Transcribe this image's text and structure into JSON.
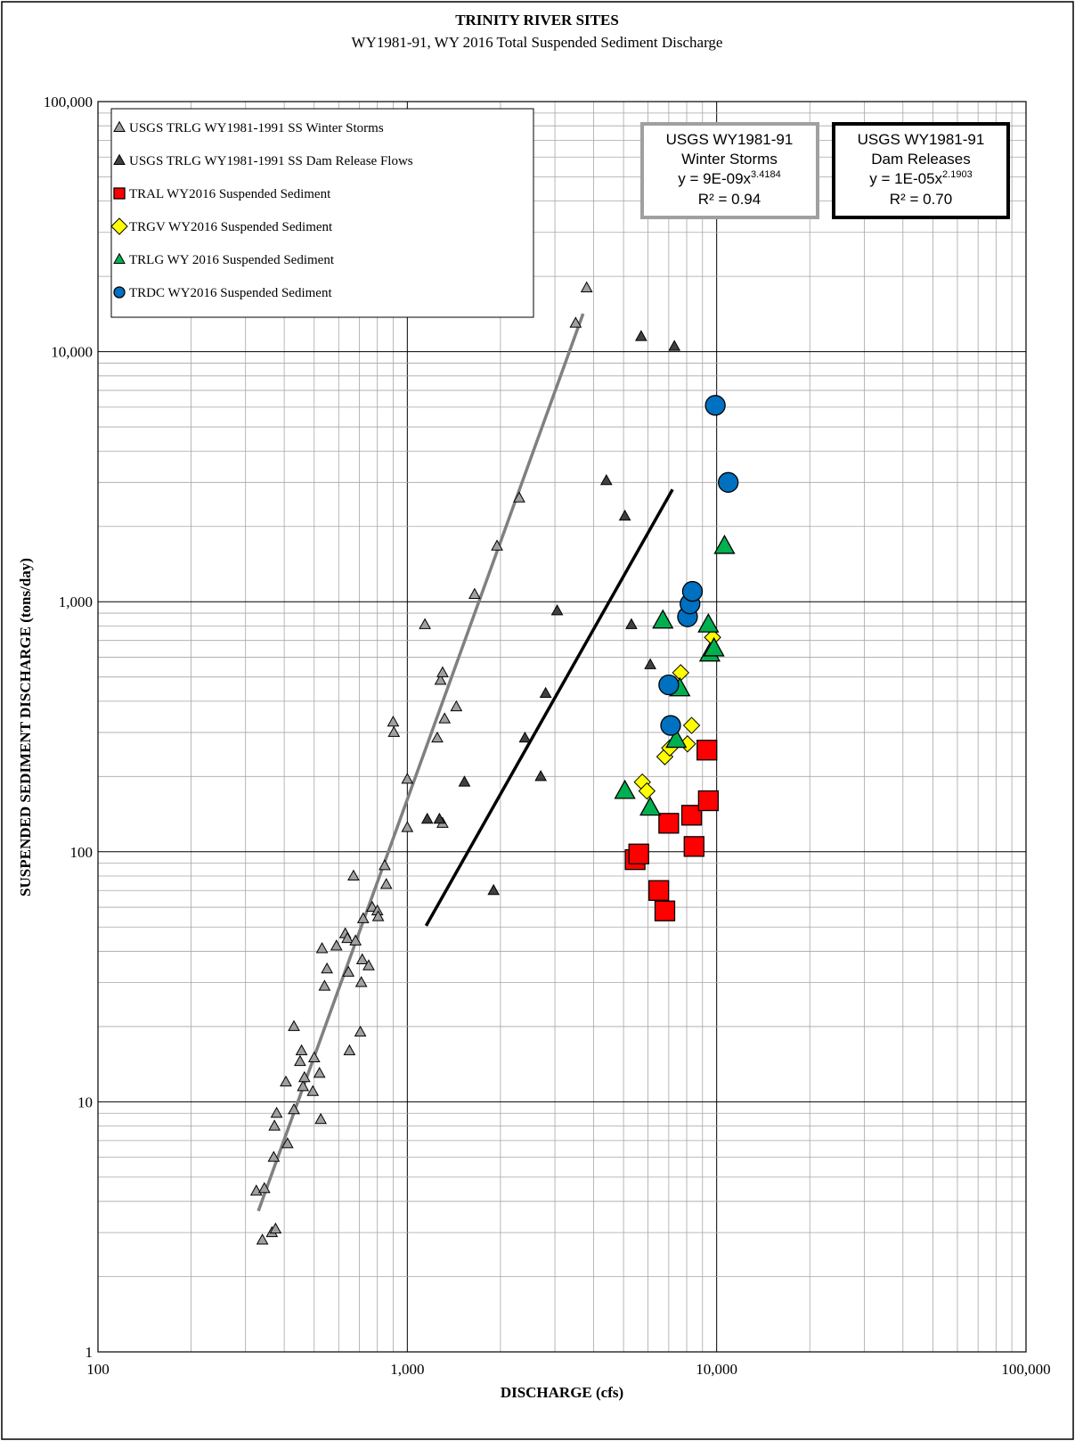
{
  "chart_data": {
    "type": "scatter",
    "title": "TRINITY RIVER SITES",
    "subtitle": "WY1981-91, WY 2016 Total Suspended Sediment Discharge",
    "xlabel": "DISCHARGE  (cfs)",
    "ylabel": "SUSPENDED SEDIMENT DISCHARGE  (tons/day)",
    "x_scale": "log",
    "y_scale": "log",
    "xlim": [
      100,
      100000
    ],
    "ylim": [
      1,
      100000
    ],
    "grid": true,
    "legend_position": "top-left",
    "x_ticks": [
      {
        "value": 100,
        "label": "100"
      },
      {
        "value": 1000,
        "label": "1,000"
      },
      {
        "value": 10000,
        "label": "10,000"
      },
      {
        "value": 100000,
        "label": "100,000"
      }
    ],
    "y_ticks": [
      {
        "value": 1,
        "label": "1"
      },
      {
        "value": 10,
        "label": "10"
      },
      {
        "value": 100,
        "label": "100"
      },
      {
        "value": 1000,
        "label": "1,000"
      },
      {
        "value": 10000,
        "label": "10,000"
      },
      {
        "value": 100000,
        "label": "100,000"
      }
    ],
    "series": [
      {
        "name": "USGS TRLG WY1981-1991 SS Winter Storms",
        "marker": "triangle",
        "color": "#a0a0a0",
        "size": "small",
        "points": [
          [
            325,
            4.4
          ],
          [
            340,
            2.8
          ],
          [
            365,
            3.0
          ],
          [
            375,
            3.1
          ],
          [
            345,
            4.5
          ],
          [
            370,
            6.0
          ],
          [
            372,
            8.0
          ],
          [
            378,
            9.0
          ],
          [
            410,
            6.8
          ],
          [
            405,
            12
          ],
          [
            430,
            9.3
          ],
          [
            430,
            20
          ],
          [
            455,
            16
          ],
          [
            450,
            14.5
          ],
          [
            460,
            11.5
          ],
          [
            465,
            12.5
          ],
          [
            495,
            11
          ],
          [
            500,
            15
          ],
          [
            520,
            13
          ],
          [
            525,
            8.5
          ],
          [
            530,
            41
          ],
          [
            540,
            29
          ],
          [
            550,
            34
          ],
          [
            590,
            42
          ],
          [
            630,
            47
          ],
          [
            640,
            45
          ],
          [
            645,
            33
          ],
          [
            650,
            16
          ],
          [
            670,
            80
          ],
          [
            680,
            44
          ],
          [
            705,
            19
          ],
          [
            710,
            30
          ],
          [
            715,
            37
          ],
          [
            720,
            54
          ],
          [
            750,
            35
          ],
          [
            770,
            60
          ],
          [
            800,
            58
          ],
          [
            805,
            55
          ],
          [
            845,
            88
          ],
          [
            855,
            74
          ],
          [
            900,
            330
          ],
          [
            905,
            300
          ],
          [
            1000,
            195
          ],
          [
            1000,
            125
          ],
          [
            1140,
            810
          ],
          [
            1250,
            285
          ],
          [
            1280,
            485
          ],
          [
            1300,
            520
          ],
          [
            1320,
            340
          ],
          [
            1440,
            380
          ],
          [
            1650,
            1070
          ],
          [
            1950,
            1670
          ],
          [
            2300,
            2600
          ],
          [
            3500,
            13000
          ],
          [
            3800,
            18000
          ],
          [
            1300,
            130
          ]
        ]
      },
      {
        "name": "USGS TRLG WY1981-1991  SS Dam Release Flows",
        "marker": "triangle",
        "color": "#404040",
        "size": "small",
        "points": [
          [
            1160,
            135
          ],
          [
            1270,
            135
          ],
          [
            1530,
            190
          ],
          [
            1900,
            70
          ],
          [
            2400,
            285
          ],
          [
            2700,
            200
          ],
          [
            2800,
            430
          ],
          [
            3050,
            920
          ],
          [
            4400,
            3050
          ],
          [
            5050,
            2200
          ],
          [
            5300,
            810
          ],
          [
            5700,
            11500
          ],
          [
            6100,
            560
          ],
          [
            7300,
            10500
          ]
        ]
      },
      {
        "name": "TRAL WY2016 Suspended Sediment",
        "marker": "square",
        "color": "#ff0000",
        "size": "large",
        "points": [
          [
            5450,
            93
          ],
          [
            5600,
            98
          ],
          [
            6500,
            70
          ],
          [
            6800,
            58
          ],
          [
            7000,
            130
          ],
          [
            8300,
            140
          ],
          [
            8450,
            105
          ],
          [
            9300,
            255
          ],
          [
            9400,
            160
          ]
        ]
      },
      {
        "name": "TRGV WY2016 Suspended Sediment",
        "marker": "diamond",
        "color": "#ffff00",
        "size": "small",
        "points": [
          [
            5750,
            190
          ],
          [
            5950,
            175
          ],
          [
            6800,
            240
          ],
          [
            7050,
            260
          ],
          [
            7650,
            520
          ],
          [
            8050,
            270
          ],
          [
            8300,
            320
          ],
          [
            9700,
            720
          ]
        ]
      },
      {
        "name": "TRLG WY 2016 Suspended Sediment",
        "marker": "triangle",
        "color": "#00b050",
        "size": "large",
        "points": [
          [
            5050,
            175
          ],
          [
            6100,
            150
          ],
          [
            6700,
            840
          ],
          [
            7400,
            280
          ],
          [
            7600,
            450
          ],
          [
            9400,
            810
          ],
          [
            9500,
            620
          ],
          [
            9800,
            650
          ],
          [
            10600,
            1670
          ]
        ]
      },
      {
        "name": "TRDC WY2016 Suspended Sediment",
        "marker": "circle",
        "color": "#0070c0",
        "size": "large",
        "points": [
          [
            7000,
            465
          ],
          [
            7100,
            320
          ],
          [
            8050,
            870
          ],
          [
            8200,
            980
          ],
          [
            8350,
            1100
          ],
          [
            9900,
            6100
          ],
          [
            10900,
            3000
          ]
        ]
      }
    ],
    "trendlines": [
      {
        "name": "Winter Storms trendline",
        "color": "#808080",
        "a": 9e-09,
        "b": 3.4184,
        "x_range": [
          330,
          3700
        ]
      },
      {
        "name": "Dam Releases trendline",
        "color": "#000000",
        "a": 1e-05,
        "b": 2.1903,
        "x_range": [
          1150,
          7200
        ]
      }
    ],
    "annotations": [
      {
        "border_color": "#a0a0a0",
        "lines": [
          "USGS WY1981-91",
          "Winter Storms"
        ],
        "equation_prefix": "y = 9E-09x",
        "exponent": "3.4184",
        "r2": "R² = 0.94"
      },
      {
        "border_color": "#000000",
        "lines": [
          "USGS WY1981-91",
          "Dam Releases"
        ],
        "equation_prefix": "y = 1E-05x",
        "exponent": "2.1903",
        "r2": "R² = 0.70"
      }
    ]
  }
}
